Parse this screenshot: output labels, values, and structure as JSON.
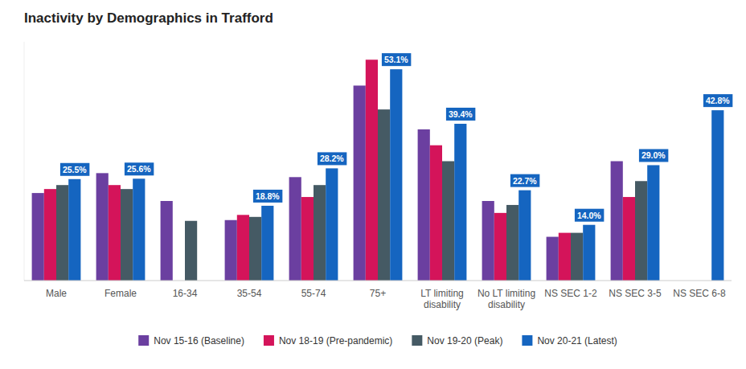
{
  "chart_data": {
    "type": "bar",
    "title": "Inactivity by Demographics in Trafford",
    "categories": [
      "Male",
      "Female",
      "16-34",
      "35-54",
      "55-74",
      "75+",
      "LT limiting\ndisability",
      "No LT limiting\ndisability",
      "NS SEC 1-2",
      "NS SEC 3-5",
      "NS SEC 6-8"
    ],
    "series": [
      {
        "name": "Nov 15-16 (Baseline)",
        "color": "#6b3fa0",
        "values": [
          22.0,
          27.0,
          20.0,
          15.2,
          26.0,
          49.0,
          38.0,
          20.0,
          11.0,
          30.0,
          null
        ]
      },
      {
        "name": "Nov 18-19 (Pre-pandemic)",
        "color": "#d4145a",
        "values": [
          23.0,
          24.0,
          null,
          16.5,
          21.0,
          55.5,
          34.0,
          17.0,
          12.0,
          21.0,
          null
        ]
      },
      {
        "name": "Nov 19-20 (Peak)",
        "color": "#455a64",
        "values": [
          24.0,
          23.0,
          15.0,
          16.0,
          24.0,
          43.0,
          30.0,
          19.0,
          12.0,
          25.0,
          null
        ]
      },
      {
        "name": "Nov 20-21 (Latest)",
        "color": "#1565c0",
        "values": [
          25.5,
          25.6,
          null,
          18.8,
          28.2,
          53.1,
          39.4,
          22.7,
          14.0,
          29.0,
          42.8
        ],
        "data_labels": true,
        "value_labels": [
          "25.5%",
          "25.6%",
          null,
          "18.8%",
          "28.2%",
          "53.1%",
          "39.4%",
          "22.7%",
          "14.0%",
          "29.0%",
          "42.8%"
        ]
      }
    ],
    "ylim": [
      0,
      60
    ],
    "grid": false,
    "legend": "bottom",
    "tick_labels": "x"
  }
}
